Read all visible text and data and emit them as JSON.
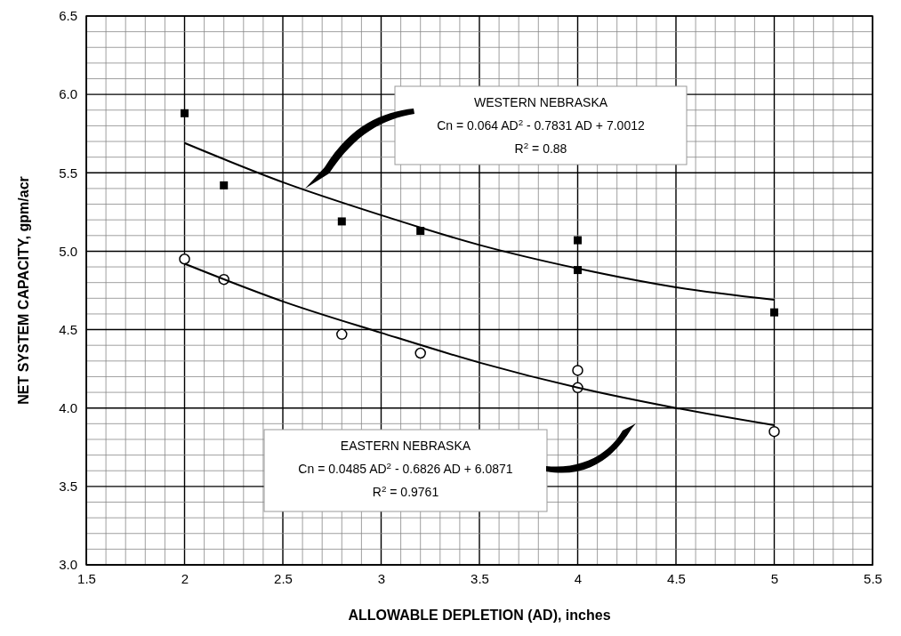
{
  "chart_data": {
    "type": "scatter",
    "xlabel": "ALLOWABLE DEPLETION (AD), inches",
    "ylabel": "NET SYSTEM CAPACITY, gpm/acr",
    "xlim": [
      1.5,
      5.5
    ],
    "ylim": [
      3.0,
      6.5
    ],
    "xticks": [
      1.5,
      {
        "value": 1.6,
        "label": null
      },
      {
        "value": 1.7,
        "label": null
      },
      {
        "value": 1.8,
        "label": null
      },
      {
        "value": 1.9,
        "label": null
      },
      2,
      {
        "value": 2.1,
        "label": null
      },
      {
        "value": 2.2,
        "label": null
      },
      {
        "value": 2.3,
        "label": null
      },
      {
        "value": 2.4,
        "label": null
      },
      2.5,
      {
        "value": 2.6,
        "label": null
      },
      {
        "value": 2.7,
        "label": null
      },
      {
        "value": 2.8,
        "label": null
      },
      {
        "value": 2.9,
        "label": null
      },
      3,
      {
        "value": 3.1,
        "label": null
      },
      {
        "value": 3.2,
        "label": null
      },
      {
        "value": 3.3,
        "label": null
      },
      {
        "value": 3.4,
        "label": null
      },
      3.5,
      {
        "value": 3.6,
        "label": null
      },
      {
        "value": 3.7,
        "label": null
      },
      {
        "value": 3.8,
        "label": null
      },
      {
        "value": 3.9,
        "label": null
      },
      4,
      {
        "value": 4.1,
        "label": null
      },
      {
        "value": 4.2,
        "label": null
      },
      {
        "value": 4.3,
        "label": null
      },
      {
        "value": 4.4,
        "label": null
      },
      4.5,
      {
        "value": 4.6,
        "label": null
      },
      {
        "value": 4.7,
        "label": null
      },
      {
        "value": 4.8,
        "label": null
      },
      {
        "value": 4.9,
        "label": null
      },
      5,
      {
        "value": 5.1,
        "label": null
      },
      {
        "value": 5.2,
        "label": null
      },
      {
        "value": 5.3,
        "label": null
      },
      {
        "value": 5.4,
        "label": null
      },
      5.5
    ],
    "yticks": [
      {
        "value": 3,
        "label": "3.0"
      },
      {
        "value": 3.1,
        "label": null
      },
      {
        "value": 3.2,
        "label": null
      },
      {
        "value": 3.3,
        "label": null
      },
      {
        "value": 3.4,
        "label": null
      },
      3.5,
      {
        "value": 3.6,
        "label": null
      },
      {
        "value": 3.7,
        "label": null
      },
      {
        "value": 3.8,
        "label": null
      },
      {
        "value": 3.9,
        "label": null
      },
      {
        "value": 4,
        "label": "4.0"
      },
      {
        "value": 4.1,
        "label": null
      },
      {
        "value": 4.2,
        "label": null
      },
      {
        "value": 4.3,
        "label": null
      },
      {
        "value": 4.4,
        "label": null
      },
      4.5,
      {
        "value": 4.6,
        "label": null
      },
      {
        "value": 4.7,
        "label": null
      },
      {
        "value": 4.8,
        "label": null
      },
      {
        "value": 4.9,
        "label": null
      },
      {
        "value": 5,
        "label": "5.0"
      },
      {
        "value": 5.1,
        "label": null
      },
      {
        "value": 5.2,
        "label": null
      },
      {
        "value": 5.3,
        "label": null
      },
      {
        "value": 5.4,
        "label": null
      },
      5.5,
      {
        "value": 5.6,
        "label": null
      },
      {
        "value": 5.7,
        "label": null
      },
      {
        "value": 5.8,
        "label": null
      },
      {
        "value": 5.9,
        "label": null
      },
      {
        "value": 6,
        "label": "6.0"
      },
      {
        "value": 6.1,
        "label": null
      },
      {
        "value": 6.2,
        "label": null
      },
      {
        "value": 6.3,
        "label": null
      },
      {
        "value": 6.4,
        "label": null
      },
      6.5
    ],
    "grid": true,
    "series": [
      {
        "marker": "square",
        "color": "#000000",
        "x": [
          2,
          2.2,
          2.8,
          3.2,
          4,
          4,
          5
        ],
        "values": [
          5.88,
          5.42,
          5.19,
          5.13,
          5.07,
          4.88,
          4.61
        ]
      },
      {
        "marker": "circle",
        "color": "#000000",
        "x": [
          2,
          2.2,
          2.8,
          3.2,
          4,
          4,
          5
        ],
        "values": [
          4.95,
          4.82,
          4.47,
          4.35,
          4.24,
          4.13,
          3.85
        ]
      },
      {
        "type": "line",
        "line_style": "solid",
        "color": "#000000",
        "x": [
          2,
          2.5,
          3,
          3.5,
          4,
          4.5,
          5
        ],
        "values": [
          5.69,
          5.44,
          5.23,
          5.04,
          4.89,
          4.77,
          4.69
        ]
      },
      {
        "type": "line",
        "line_style": "solid",
        "color": "#000000",
        "x": [
          2,
          2.5,
          3,
          3.5,
          4,
          4.5,
          5
        ],
        "values": [
          4.92,
          4.68,
          4.48,
          4.29,
          4.13,
          4.0,
          3.89
        ]
      }
    ],
    "annotations": [
      "WESTERN NEBRASKA",
      "Cn = 0.064 AD$^{2}$ - 0.7831 AD + 7.0012",
      "R$^{2}$ = 0.88",
      "EASTERN NEBRASKA",
      "Cn = 0.0485 AD$^{2}$ - 0.6826 AD  + 6.0871",
      "R$^{2}$ = 0.9761"
    ]
  }
}
